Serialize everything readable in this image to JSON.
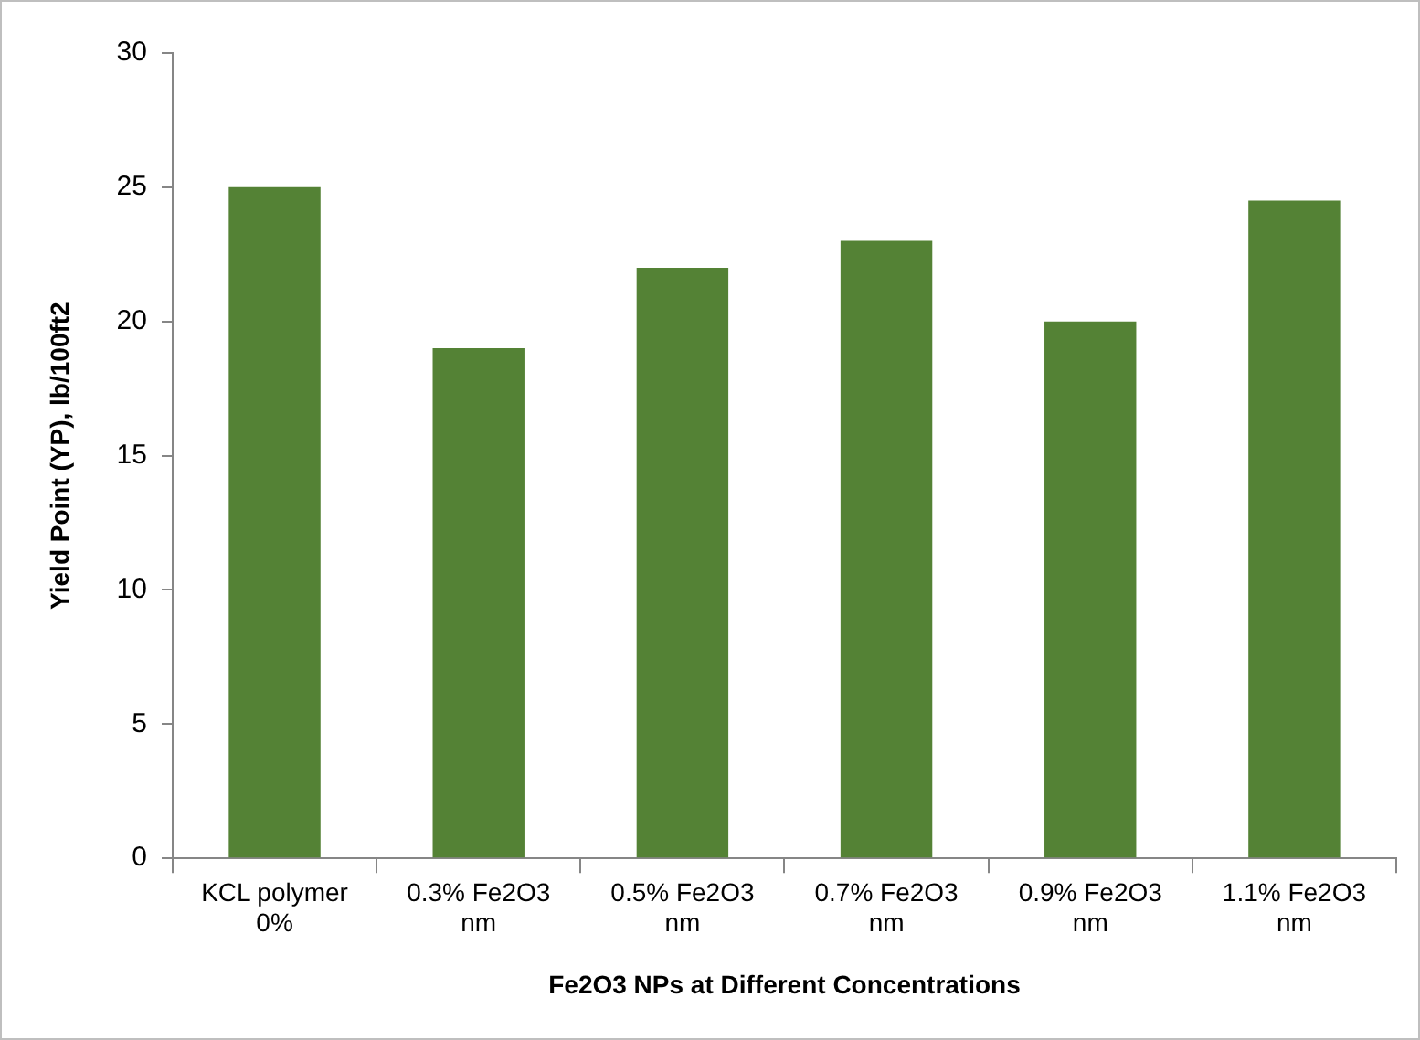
{
  "chart_data": {
    "type": "bar",
    "xlabel": "Fe2O3 NPs at Different Concentrations",
    "ylabel": "Yield Point (YP), lb/100ft2",
    "categories": [
      "KCL polymer 0%",
      "0.3% Fe2O3 nm",
      "0.5% Fe2O3 nm",
      "0.7% Fe2O3 nm",
      "0.9% Fe2O3 nm",
      "1.1% Fe2O3 nm"
    ],
    "values": [
      25,
      19,
      22,
      23,
      20,
      24.5
    ],
    "color": "#548235",
    "ylim": [
      0,
      30
    ],
    "yticks": [
      0,
      5,
      10,
      15,
      20,
      25,
      30
    ],
    "grid": false,
    "legend": false
  }
}
